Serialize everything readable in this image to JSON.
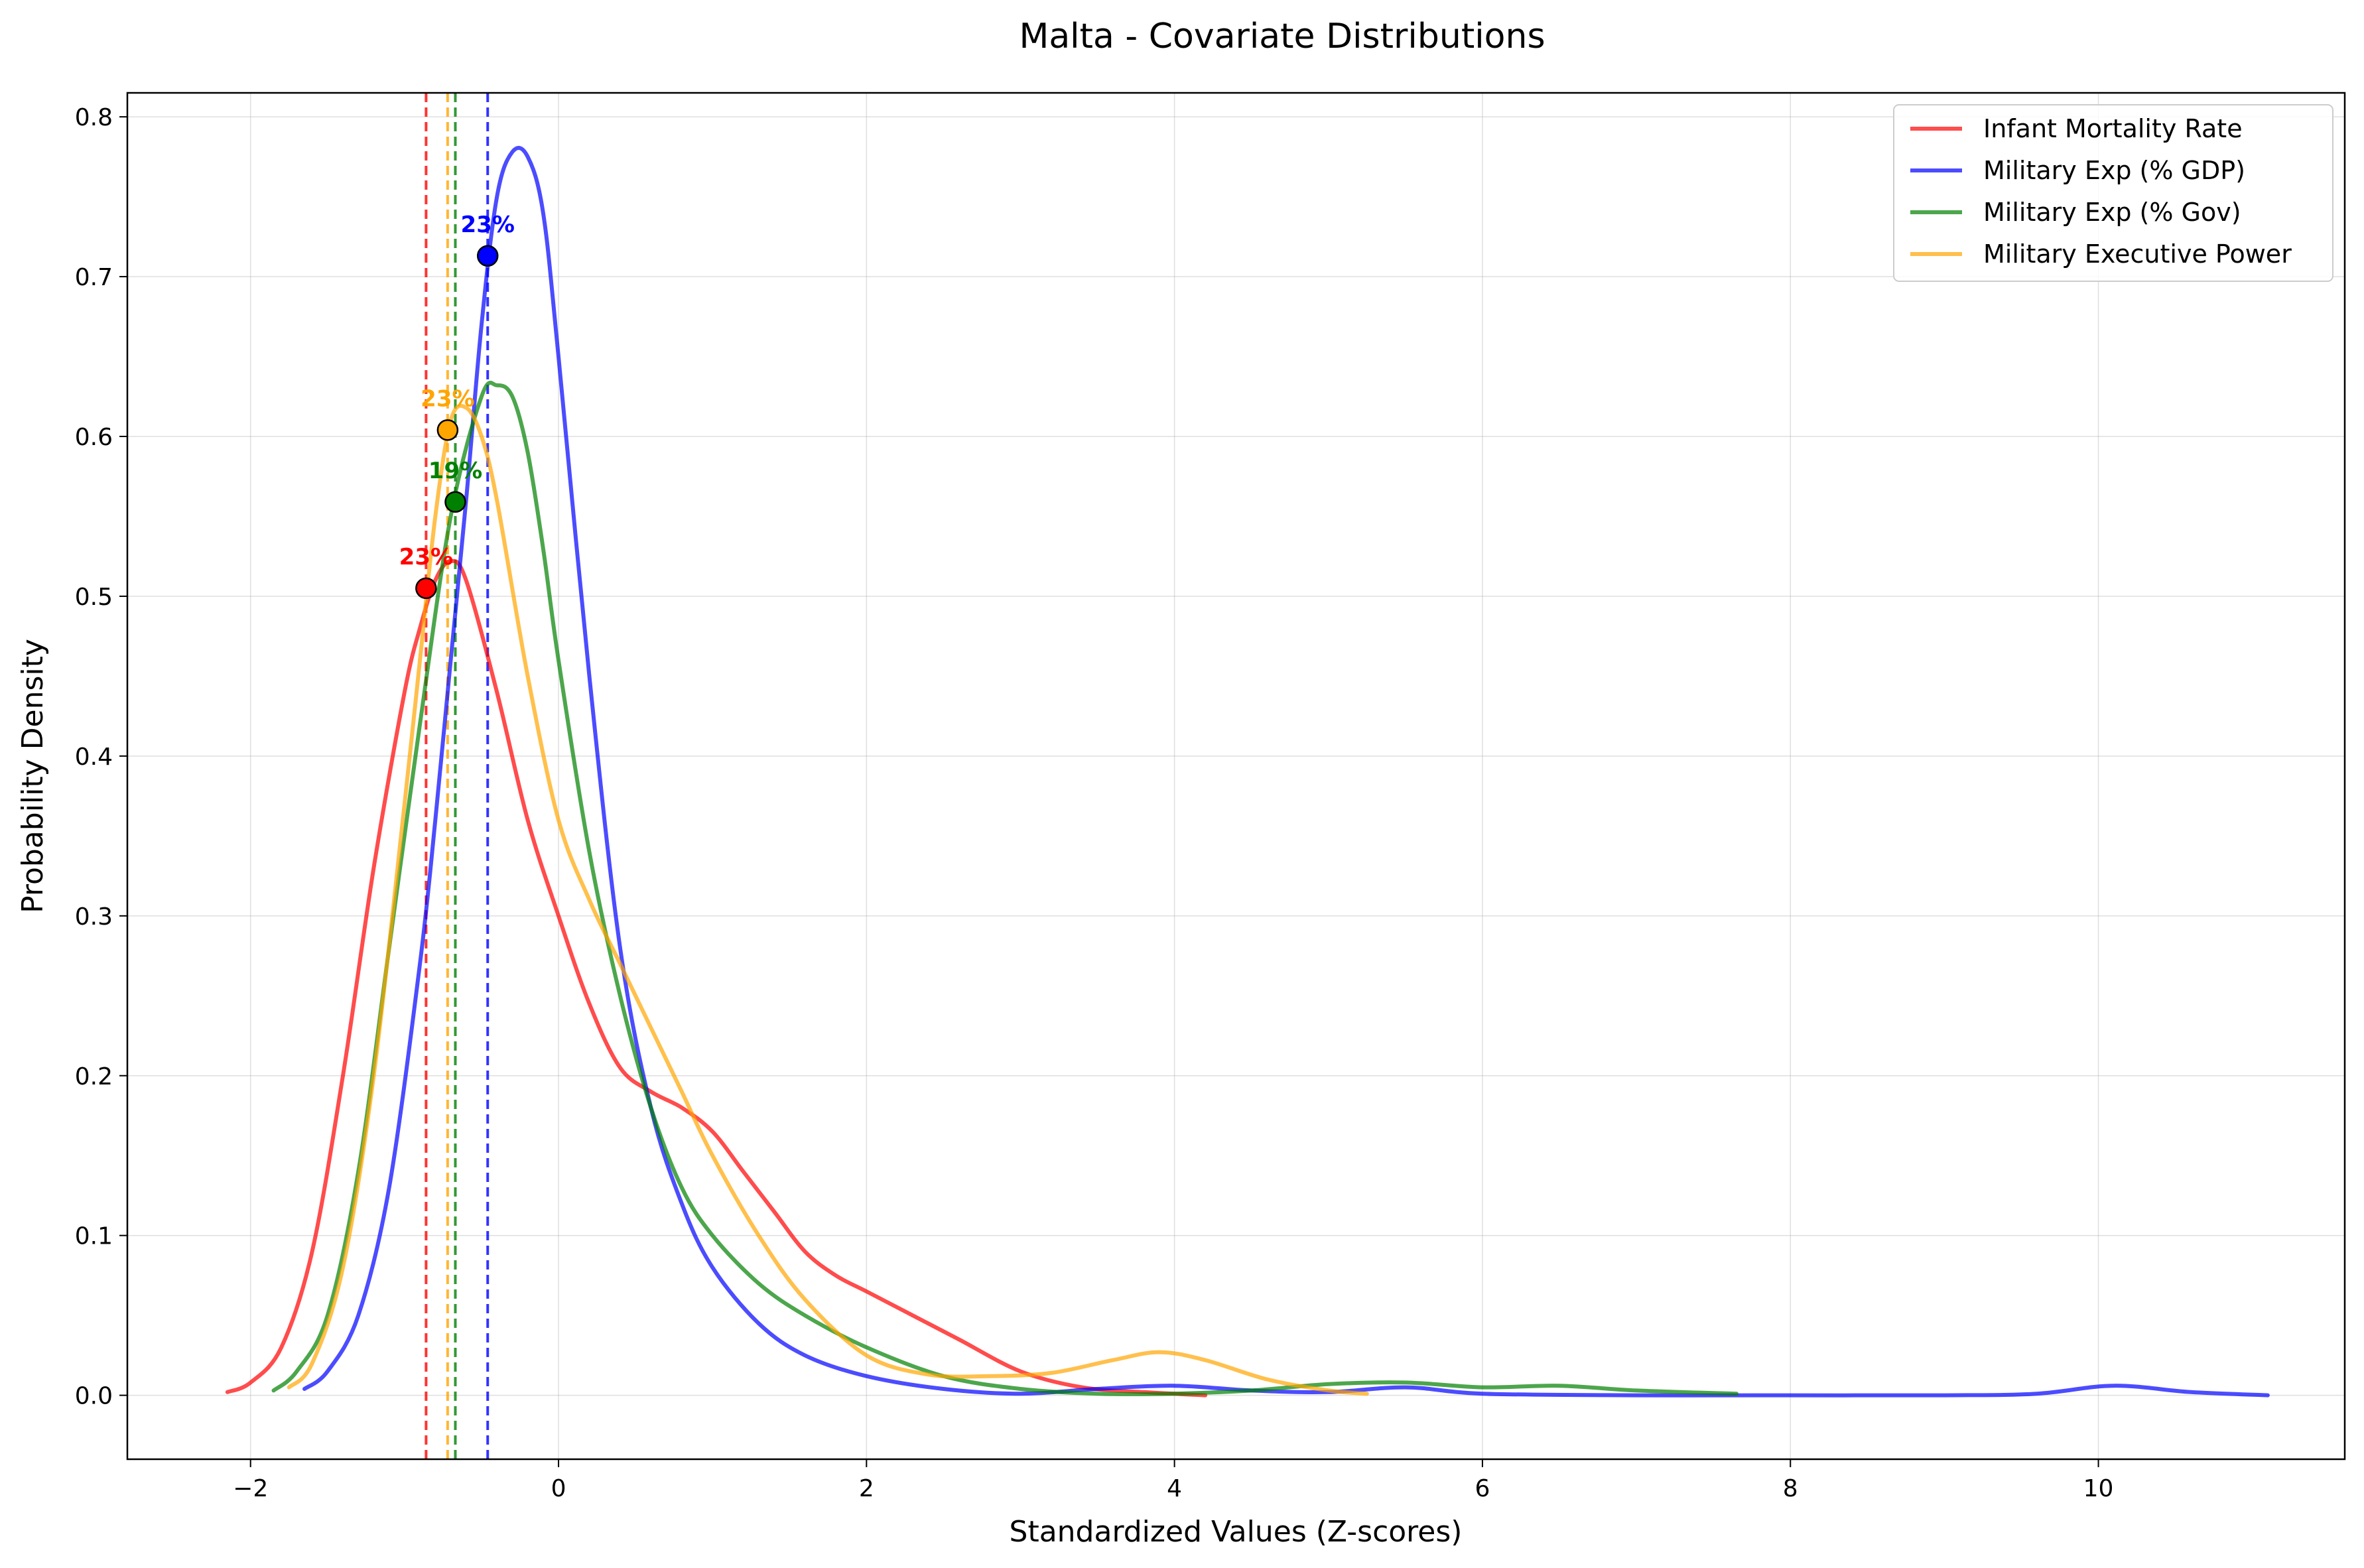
{
  "chart_data": {
    "type": "line",
    "title": "Malta - Covariate Distributions",
    "xlabel": "Standardized Values (Z-scores)",
    "ylabel": "Probability Density",
    "xlim": [
      -2.8,
      11.6
    ],
    "ylim": [
      -0.04,
      0.815
    ],
    "xticks": [
      -2,
      0,
      2,
      4,
      6,
      8,
      10
    ],
    "yticks": [
      0.0,
      0.1,
      0.2,
      0.3,
      0.4,
      0.5,
      0.6,
      0.7,
      0.8
    ],
    "xtick_labels": [
      "−2",
      "0",
      "2",
      "4",
      "6",
      "8",
      "10"
    ],
    "ytick_labels": [
      "0.0",
      "0.1",
      "0.2",
      "0.3",
      "0.4",
      "0.5",
      "0.6",
      "0.7",
      "0.8"
    ],
    "grid": true,
    "legend_position": "top-right",
    "series": [
      {
        "name": "Infant Mortality Rate",
        "color": "#ff0000",
        "marker_x": -0.86,
        "marker_y": 0.505,
        "marker_label": "23%",
        "x": [
          -2.15,
          -2.0,
          -1.8,
          -1.6,
          -1.4,
          -1.2,
          -1.0,
          -0.9,
          -0.8,
          -0.7,
          -0.6,
          -0.4,
          -0.2,
          0.0,
          0.2,
          0.4,
          0.6,
          0.8,
          1.0,
          1.2,
          1.4,
          1.6,
          1.8,
          2.0,
          2.3,
          2.6,
          3.0,
          3.4,
          3.8,
          4.2
        ],
        "y": [
          0.002,
          0.008,
          0.03,
          0.09,
          0.2,
          0.33,
          0.44,
          0.48,
          0.51,
          0.522,
          0.51,
          0.44,
          0.36,
          0.3,
          0.245,
          0.205,
          0.19,
          0.18,
          0.165,
          0.14,
          0.115,
          0.09,
          0.075,
          0.065,
          0.05,
          0.035,
          0.015,
          0.005,
          0.002,
          0.0
        ]
      },
      {
        "name": "Military Exp (% GDP)",
        "color": "#0000ff",
        "marker_x": -0.46,
        "marker_y": 0.713,
        "marker_label": "23%",
        "x": [
          -1.65,
          -1.5,
          -1.3,
          -1.1,
          -0.9,
          -0.8,
          -0.7,
          -0.6,
          -0.5,
          -0.4,
          -0.3,
          -0.2,
          -0.1,
          0.0,
          0.2,
          0.4,
          0.6,
          0.8,
          1.0,
          1.3,
          1.6,
          2.0,
          2.5,
          3.0,
          3.5,
          4.0,
          4.5,
          5.0,
          5.5,
          6.0,
          7.0,
          8.0,
          9.0,
          9.6,
          10.1,
          10.6,
          11.1
        ],
        "y": [
          0.004,
          0.015,
          0.05,
          0.13,
          0.27,
          0.36,
          0.46,
          0.56,
          0.67,
          0.75,
          0.778,
          0.775,
          0.74,
          0.65,
          0.45,
          0.28,
          0.18,
          0.12,
          0.08,
          0.045,
          0.025,
          0.012,
          0.004,
          0.001,
          0.004,
          0.006,
          0.003,
          0.002,
          0.005,
          0.001,
          0.0,
          0.0,
          0.0,
          0.001,
          0.006,
          0.002,
          0.0
        ]
      },
      {
        "name": "Military Exp (% Gov)",
        "color": "#008000",
        "marker_x": -0.67,
        "marker_y": 0.559,
        "marker_label": "19%",
        "x": [
          -1.85,
          -1.7,
          -1.5,
          -1.3,
          -1.1,
          -0.9,
          -0.7,
          -0.5,
          -0.4,
          -0.3,
          -0.2,
          -0.1,
          0.0,
          0.2,
          0.4,
          0.6,
          0.8,
          1.0,
          1.3,
          1.6,
          2.0,
          2.5,
          3.0,
          3.5,
          4.0,
          4.5,
          5.0,
          5.5,
          6.0,
          6.5,
          7.0,
          7.65
        ],
        "y": [
          0.003,
          0.015,
          0.05,
          0.14,
          0.28,
          0.42,
          0.55,
          0.625,
          0.632,
          0.625,
          0.59,
          0.53,
          0.46,
          0.34,
          0.25,
          0.18,
          0.13,
          0.1,
          0.07,
          0.05,
          0.03,
          0.012,
          0.004,
          0.001,
          0.001,
          0.003,
          0.007,
          0.008,
          0.005,
          0.006,
          0.003,
          0.001
        ]
      },
      {
        "name": "Military Executive Power",
        "color": "#ffa500",
        "marker_x": -0.72,
        "marker_y": 0.604,
        "marker_label": "23%",
        "x": [
          -1.75,
          -1.6,
          -1.4,
          -1.2,
          -1.0,
          -0.9,
          -0.8,
          -0.7,
          -0.6,
          -0.5,
          -0.4,
          -0.2,
          0.0,
          0.2,
          0.4,
          0.6,
          0.8,
          1.0,
          1.3,
          1.6,
          2.0,
          2.4,
          2.8,
          3.2,
          3.6,
          3.9,
          4.2,
          4.6,
          5.0,
          5.25
        ],
        "y": [
          0.005,
          0.02,
          0.08,
          0.2,
          0.37,
          0.46,
          0.55,
          0.61,
          0.618,
          0.6,
          0.56,
          0.45,
          0.36,
          0.31,
          0.27,
          0.23,
          0.19,
          0.15,
          0.1,
          0.06,
          0.025,
          0.013,
          0.012,
          0.014,
          0.022,
          0.027,
          0.022,
          0.01,
          0.003,
          0.001
        ]
      }
    ]
  }
}
